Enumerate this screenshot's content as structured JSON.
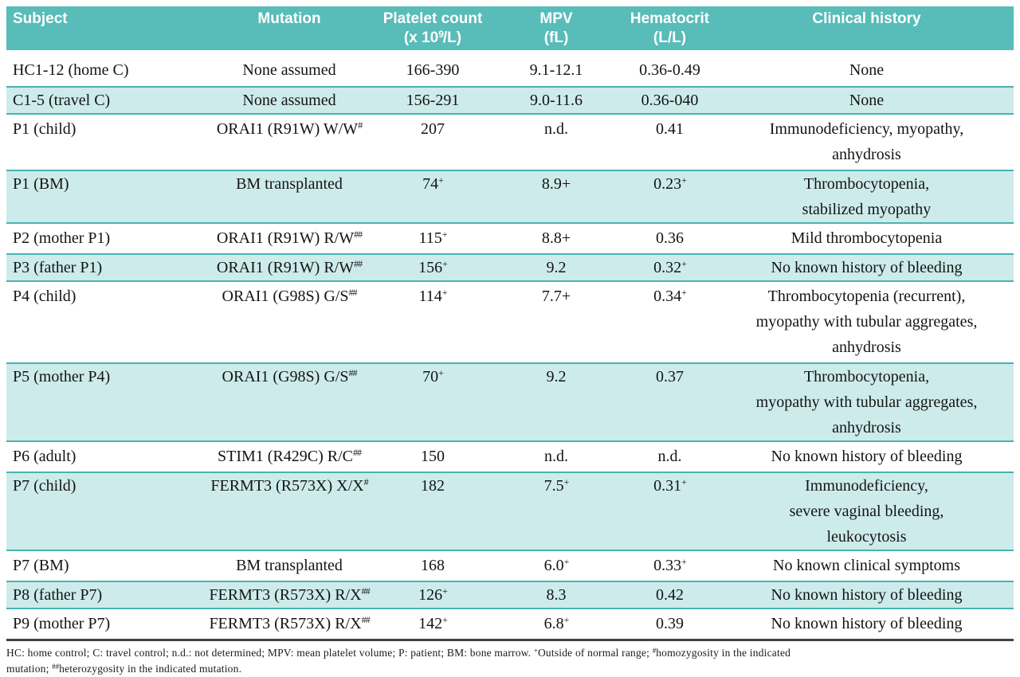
{
  "figure": {
    "columns": [
      {
        "lines": [
          "Subject"
        ],
        "align": "left"
      },
      {
        "lines": [
          "Mutation"
        ],
        "align": "center"
      },
      {
        "lines": [
          "Platelet count",
          "(x 10^{9}/L)"
        ],
        "align": "center"
      },
      {
        "lines": [
          "MPV",
          "(fL)"
        ],
        "align": "center"
      },
      {
        "lines": [
          "Hematocrit",
          "(L/L)"
        ],
        "align": "center"
      },
      {
        "lines": [
          "Clinical history"
        ],
        "align": "center"
      }
    ],
    "rows": [
      {
        "subject": "HC1-12 (home C)",
        "mutation": "None assumed",
        "platelet": "166-390",
        "mpv": "9.1-12.1",
        "hematocrit": "0.36-0.49",
        "history": [
          "None"
        ],
        "shaded": false
      },
      {
        "subject": "C1-5 (travel C)",
        "mutation": "None assumed",
        "platelet": "156-291",
        "mpv": "9.0-11.6",
        "hematocrit": "0.36-040",
        "history": [
          "None"
        ],
        "shaded": true
      },
      {
        "subject": "P1 (child)",
        "mutation": "ORAI1 (R91W) W/W^{#}",
        "platelet": "207",
        "mpv": "n.d.",
        "hematocrit": "0.41",
        "history": [
          "Immunodeficiency, myopathy,",
          "anhydrosis"
        ],
        "shaded": false
      },
      {
        "subject": "P1 (BM)",
        "mutation": "BM transplanted",
        "platelet": "74^{+}",
        "mpv": "8.9+",
        "hematocrit": "0.23^{+}",
        "history": [
          "Thrombocytopenia,",
          "stabilized myopathy"
        ],
        "shaded": true
      },
      {
        "subject": "P2 (mother P1)",
        "mutation": "ORAI1 (R91W) R/W^{##}",
        "platelet": "115^{+}",
        "mpv": "8.8+",
        "hematocrit": "0.36",
        "history": [
          "Mild thrombocytopenia"
        ],
        "shaded": false
      },
      {
        "subject": "P3 (father P1)",
        "mutation": "ORAI1 (R91W) R/W^{##}",
        "platelet": "156^{+}",
        "mpv": "9.2",
        "hematocrit": "0.32^{+}",
        "history": [
          "No known history of bleeding"
        ],
        "shaded": true
      },
      {
        "subject": "P4 (child)",
        "mutation": "ORAI1 (G98S) G/S^{##}",
        "platelet": "114^{+}",
        "mpv": "7.7+",
        "hematocrit": "0.34^{+}",
        "history": [
          "Thrombocytopenia (recurrent),",
          "myopathy with tubular aggregates,",
          "anhydrosis"
        ],
        "shaded": false
      },
      {
        "subject": "P5 (mother P4)",
        "mutation": "ORAI1 (G98S) G/S^{##}",
        "platelet": "70^{+}",
        "mpv": "9.2",
        "hematocrit": "0.37",
        "history": [
          "Thrombocytopenia,",
          "myopathy with tubular aggregates,",
          "anhydrosis"
        ],
        "shaded": true
      },
      {
        "subject": "P6 (adult)",
        "mutation": "STIM1 (R429C) R/C^{##}",
        "platelet": "150",
        "mpv": "n.d.",
        "hematocrit": "n.d.",
        "history": [
          "No known history of bleeding"
        ],
        "shaded": false
      },
      {
        "subject": "P7 (child)",
        "mutation": "FERMT3 (R573X) X/X^{#}",
        "platelet": "182",
        "mpv": "7.5^{+}",
        "hematocrit": "0.31^{+}",
        "history": [
          "Immunodeficiency,",
          "severe vaginal bleeding,",
          "leukocytosis"
        ],
        "shaded": true
      },
      {
        "subject": "P7 (BM)",
        "mutation": "BM transplanted",
        "platelet": "168",
        "mpv": "6.0^{+}",
        "hematocrit": "0.33^{+}",
        "history": [
          "No known clinical symptoms"
        ],
        "shaded": false
      },
      {
        "subject": "P8 (father P7)",
        "mutation": "FERMT3 (R573X) R/X^{##}",
        "platelet": "126^{+}",
        "mpv": "8.3",
        "hematocrit": "0.42",
        "history": [
          "No known history of bleeding"
        ],
        "shaded": true
      },
      {
        "subject": "P9 (mother P7)",
        "mutation": "FERMT3 (R573X) R/X^{##}",
        "platelet": "142^{+}",
        "mpv": "6.8^{+}",
        "hematocrit": "0.39",
        "history": [
          "No known history of bleeding"
        ],
        "shaded": false
      }
    ],
    "footnote_lines": [
      "HC: home control; C: travel control; n.d.: not determined; MPV: mean platelet volume; P: patient; BM: bone marrow. ^{+}Outside of normal range; ^{#}homozygosity in the indicated",
      "mutation; ^{##}heterozygosity in the indicated mutation."
    ],
    "colors": {
      "header_bg": "#58bcb9",
      "header_text": "#ffffff",
      "shaded_row_bg": "#cdebea",
      "row_separator": "#49b3b0",
      "bottom_rule": "#414141",
      "body_text": "#141414"
    }
  }
}
